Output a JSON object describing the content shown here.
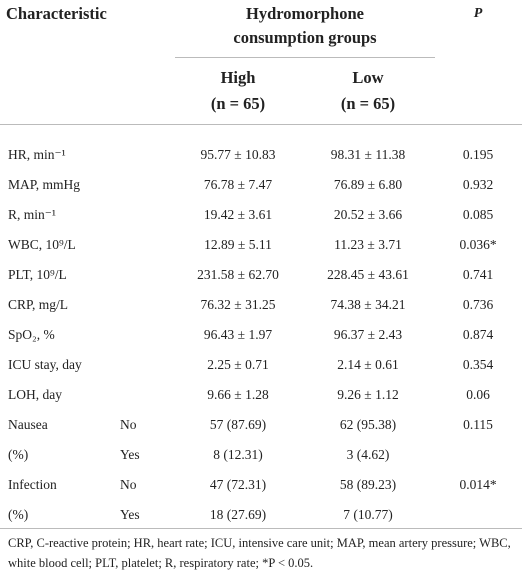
{
  "table": {
    "header": {
      "characteristic": "Characteristic",
      "group": "Hydromorphone consumption groups",
      "p": "P",
      "high": "High",
      "high_n": "(n = 65)",
      "low": "Low",
      "low_n": "(n = 65)"
    },
    "rows": [
      {
        "label": "HR, min⁻¹",
        "high": "95.77 ± 10.83",
        "low": "98.31 ± 11.38",
        "p": "0.195"
      },
      {
        "label": "MAP, mmHg",
        "high": "76.78 ± 7.47",
        "low": "76.89 ± 6.80",
        "p": "0.932"
      },
      {
        "label": "R, min⁻¹",
        "high": "19.42 ± 3.61",
        "low": "20.52 ± 3.66",
        "p": "0.085"
      },
      {
        "label": "WBC, 10⁹/L",
        "high": "12.89 ± 5.11",
        "low": "11.23 ± 3.71",
        "p": "0.036*"
      },
      {
        "label": "PLT, 10⁹/L",
        "high": "231.58 ± 62.70",
        "low": "228.45 ± 43.61",
        "p": "0.741"
      },
      {
        "label": "CRP, mg/L",
        "high": "76.32 ± 31.25",
        "low": "74.38 ± 34.21",
        "p": "0.736"
      },
      {
        "label": "SpO₂, %",
        "high": "96.43 ± 1.97",
        "low": "96.37 ± 2.43",
        "p": "0.874"
      },
      {
        "label": "ICU stay, day",
        "high": "2.25 ± 0.71",
        "low": "2.14 ± 0.61",
        "p": "0.354"
      },
      {
        "label": "LOH, day",
        "high": "9.66 ± 1.28",
        "low": "9.26 ± 1.12",
        "p": "0.06"
      },
      {
        "label": "Nausea",
        "group": "No",
        "high": "57 (87.69)",
        "low": "62 (95.38)",
        "p": "0.115"
      },
      {
        "label": "(%)",
        "group": "Yes",
        "high": "8 (12.31)",
        "low": "3 (4.62)"
      },
      {
        "label": "Infection",
        "group": "No",
        "high": "47 (72.31)",
        "low": "58 (89.23)",
        "p": "0.014*"
      },
      {
        "label": "(%)",
        "group": "Yes",
        "high": "18 (27.69)",
        "low": "7 (10.77)"
      }
    ],
    "footnote": "CRP, C-reactive protein; HR, heart rate; ICU, intensive care unit; MAP, mean artery pressure; WBC, white blood cell; PLT, platelet; R, respiratory rate; *P < 0.05."
  }
}
